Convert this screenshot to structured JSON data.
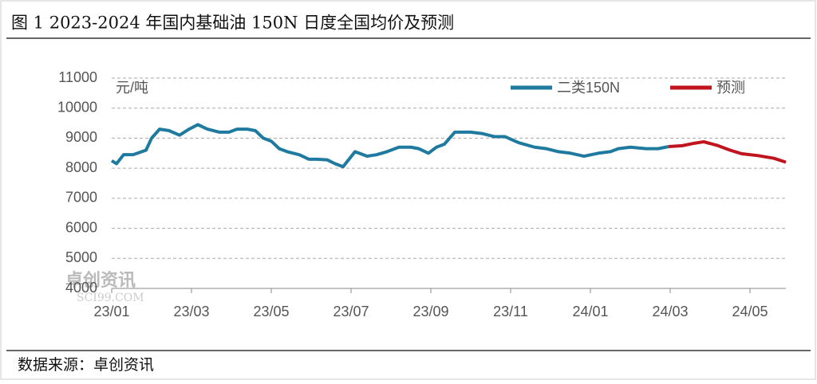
{
  "chart_data": {
    "type": "line",
    "title": "图 1 2023-2024 年国内基础油 150N 日度全国均价及预测",
    "y_label": "元/吨",
    "source": "数据来源：卓创资讯",
    "watermark": {
      "name": "卓创资讯",
      "site": "SCI99.COM"
    },
    "xlim": [
      0,
      16.9
    ],
    "xticks": [
      {
        "value": 0,
        "label": "23/01"
      },
      {
        "value": 2,
        "label": "23/03"
      },
      {
        "value": 4,
        "label": "23/05"
      },
      {
        "value": 6,
        "label": "23/07"
      },
      {
        "value": 8,
        "label": "23/09"
      },
      {
        "value": 10,
        "label": "23/11"
      },
      {
        "value": 12,
        "label": "24/01"
      },
      {
        "value": 14,
        "label": "24/03"
      },
      {
        "value": 16,
        "label": "24/05"
      }
    ],
    "ylim": [
      4000,
      11000
    ],
    "yticks": [
      4000,
      5000,
      6000,
      7000,
      8000,
      9000,
      10000,
      11000
    ],
    "grid": true,
    "legend": "top-right",
    "series": [
      {
        "name": "二类150N",
        "color": "#1f7aa0",
        "x": [
          0,
          0.12,
          0.3,
          0.54,
          0.86,
          1.0,
          1.2,
          1.44,
          1.7,
          1.94,
          2.16,
          2.4,
          2.7,
          2.94,
          3.14,
          3.4,
          3.6,
          3.8,
          4.0,
          4.2,
          4.4,
          4.7,
          4.94,
          5.14,
          5.4,
          5.6,
          5.8,
          6.1,
          6.4,
          6.64,
          6.9,
          7.2,
          7.5,
          7.7,
          7.94,
          8.14,
          8.34,
          8.6,
          9.0,
          9.3,
          9.6,
          9.86,
          10.2,
          10.6,
          10.9,
          11.2,
          11.5,
          11.84,
          12.2,
          12.5,
          12.7,
          13.0,
          13.4,
          13.7,
          13.96
        ],
        "values": [
          8250,
          8150,
          8450,
          8450,
          8600,
          9000,
          9300,
          9250,
          9100,
          9300,
          9450,
          9300,
          9200,
          9200,
          9300,
          9300,
          9250,
          9000,
          8900,
          8650,
          8550,
          8450,
          8300,
          8300,
          8280,
          8150,
          8050,
          8550,
          8400,
          8450,
          8550,
          8700,
          8700,
          8650,
          8500,
          8700,
          8800,
          9200,
          9200,
          9150,
          9050,
          9050,
          8850,
          8700,
          8650,
          8550,
          8500,
          8400,
          8500,
          8550,
          8650,
          8700,
          8650,
          8650,
          8720
        ]
      },
      {
        "name": "预测",
        "color": "#c0141e",
        "x": [
          13.96,
          14.3,
          14.6,
          14.84,
          15.2,
          15.5,
          15.8,
          16.2,
          16.6,
          16.9
        ],
        "values": [
          8720,
          8750,
          8830,
          8880,
          8750,
          8600,
          8480,
          8420,
          8330,
          8200
        ]
      }
    ]
  }
}
